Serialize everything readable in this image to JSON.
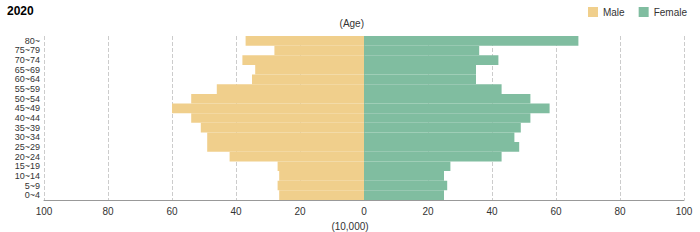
{
  "chart_data": {
    "type": "bar",
    "orientation": "horizontal",
    "title": "2020",
    "ylabel": "(Age)",
    "xlabel": "(10,000)",
    "categories": [
      "0~4",
      "5~9",
      "10~14",
      "15~19",
      "20~24",
      "25~29",
      "30~34",
      "35~39",
      "40~44",
      "45~49",
      "50~54",
      "55~59",
      "60~64",
      "65~69",
      "70~74",
      "75~79",
      "80~"
    ],
    "series": [
      {
        "name": "Male",
        "color": "#f0cf8c",
        "values": [
          26.5,
          27,
          26.5,
          27,
          42,
          49,
          49,
          51,
          54,
          60,
          54,
          46,
          35,
          34,
          38,
          28,
          37
        ]
      },
      {
        "name": "Female",
        "color": "#80bda0",
        "values": [
          25,
          26,
          25,
          27,
          43,
          48.5,
          47,
          49,
          52,
          58,
          52,
          43,
          35,
          35,
          42,
          36,
          67
        ]
      }
    ],
    "xlim": [
      0,
      100
    ],
    "xticks": [
      0,
      20,
      40,
      60,
      80,
      100
    ],
    "grid": true,
    "legend": "top-right"
  }
}
